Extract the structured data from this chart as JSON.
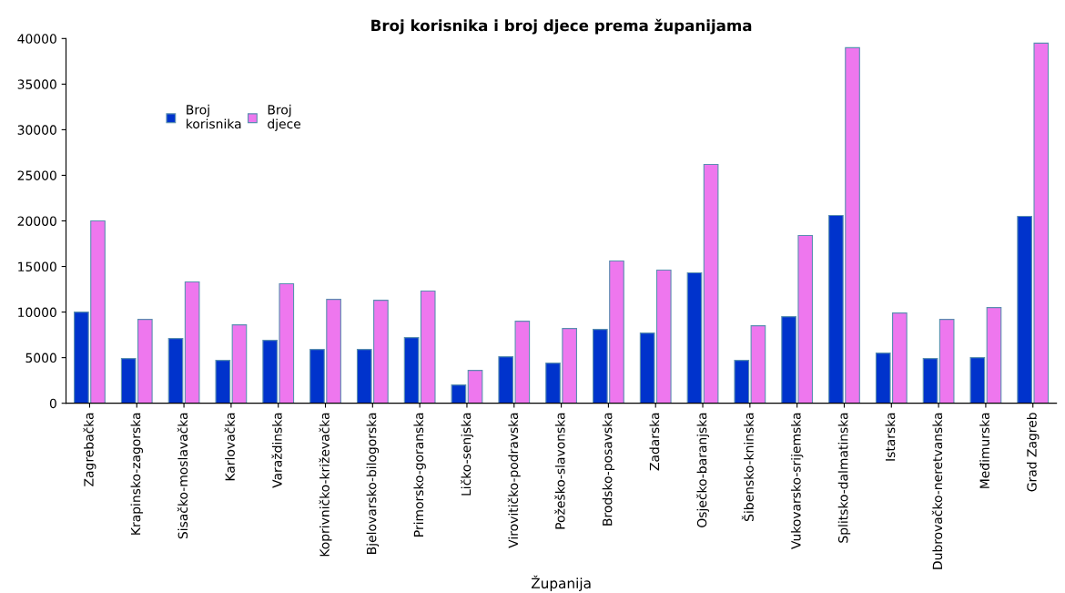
{
  "chart_data": {
    "type": "bar",
    "title": "Broj korisnika i broj djece prema županijama",
    "xlabel": "Županija",
    "categories": [
      "Zagrebačka",
      "Krapinsko-zagorska",
      "Sisačko-moslavačka",
      "Karlovačka",
      "Varaždinska",
      "Koprivničko-križevačka",
      "Bjelovarsko-bilogorska",
      "Primorsko-goranska",
      "Ličko-senjska",
      "Virovitičko-podravska",
      "Požeško-slavonska",
      "Brodsko-posavska",
      "Zadarska",
      "Osječko-baranjska",
      "Šibensko-kninska",
      "Vukovarsko-srijemska",
      "Splitsko-dalmatinska",
      "Istarska",
      "Dubrovačko-neretvanska",
      "Međimurska",
      "Grad Zagreb"
    ],
    "series": [
      {
        "name": "Broj\nkorisnika",
        "color": "#0033cc",
        "values": [
          10000,
          4900,
          7100,
          4700,
          6900,
          5900,
          5900,
          7200,
          2000,
          5100,
          4400,
          8100,
          7700,
          14300,
          4700,
          9500,
          20600,
          5500,
          4900,
          5000,
          20500
        ]
      },
      {
        "name": "Broj\ndjece",
        "color": "#ee77ee",
        "values": [
          20000,
          9200,
          13300,
          8600,
          13100,
          11400,
          11300,
          12300,
          3600,
          9000,
          8200,
          15600,
          14600,
          26200,
          8500,
          18400,
          39000,
          9900,
          9200,
          10500,
          39500
        ]
      }
    ],
    "ylim": [
      0,
      40000
    ],
    "yticks": [
      0,
      5000,
      10000,
      15000,
      20000,
      25000,
      30000,
      35000,
      40000
    ],
    "grid": false,
    "legend": "top left"
  }
}
